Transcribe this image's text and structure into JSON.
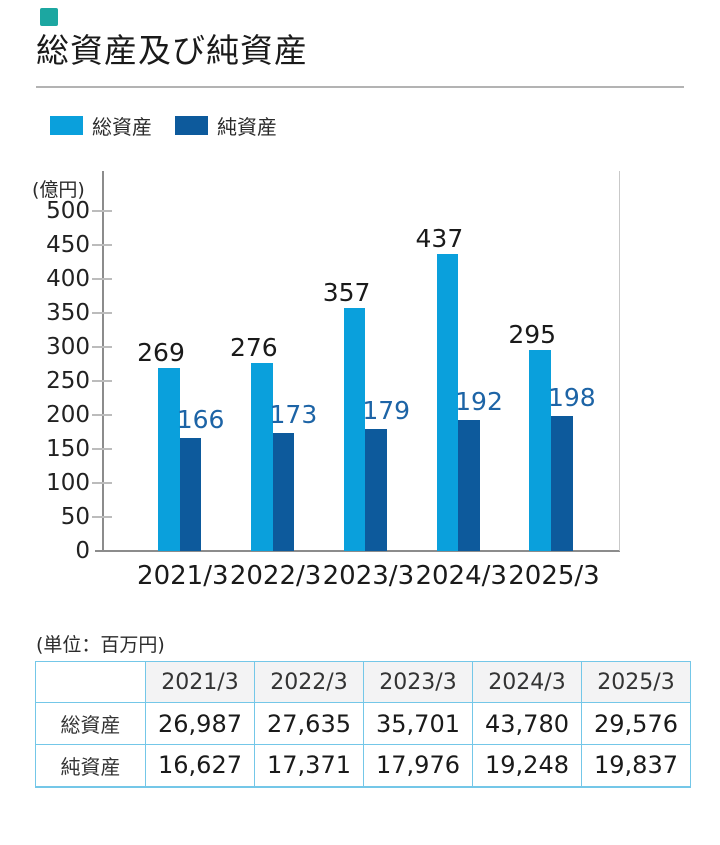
{
  "accent_color": "#1ca7a1",
  "title": "総資産及び純資産",
  "legend": [
    {
      "label": "総資産",
      "color": "#0aa0dc"
    },
    {
      "label": "純資産",
      "color": "#0d5a9c"
    }
  ],
  "chart_data": {
    "type": "bar",
    "categories": [
      "2021/3",
      "2022/3",
      "2023/3",
      "2024/3",
      "2025/3"
    ],
    "series": [
      {
        "name": "総資産",
        "color": "#0aa0dc",
        "label_color": "#1a1a1a",
        "values": [
          269,
          276,
          357,
          437,
          295
        ]
      },
      {
        "name": "純資産",
        "color": "#0d5a9c",
        "label_color": "#1d64a6",
        "values": [
          166,
          173,
          179,
          192,
          198
        ]
      }
    ],
    "ylabel": "(億円)",
    "ylim": [
      0,
      500
    ],
    "ytick_step": 50,
    "grid": false,
    "legend_position": "top-left",
    "value_labels": true
  },
  "table": {
    "unit_note": "(単位：百万円)",
    "columns": [
      "",
      "2021/3",
      "2022/3",
      "2023/3",
      "2024/3",
      "2025/3"
    ],
    "rows": [
      {
        "label": "総資産",
        "values": [
          "26,987",
          "27,635",
          "35,701",
          "43,780",
          "29,576"
        ]
      },
      {
        "label": "純資産",
        "values": [
          "16,627",
          "17,371",
          "17,976",
          "19,248",
          "19,837"
        ]
      }
    ]
  }
}
